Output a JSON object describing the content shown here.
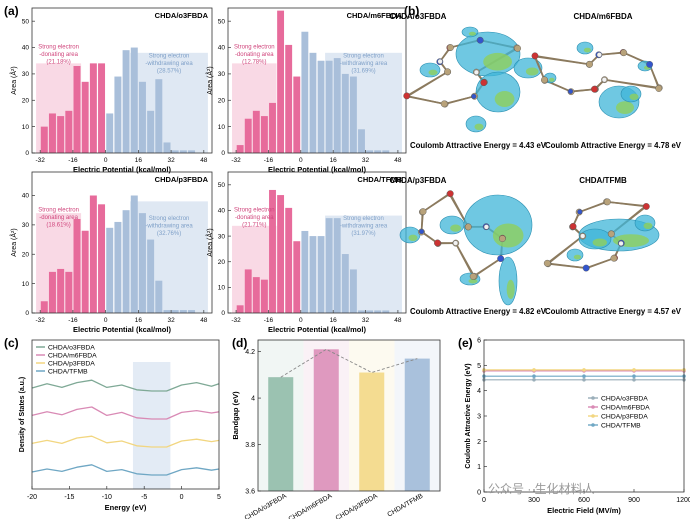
{
  "panel_labels": {
    "a": "(a)",
    "b": "(b)",
    "c": "(c)",
    "d": "(d)",
    "e": "(e)"
  },
  "colors": {
    "pink": "#e76b9b",
    "pink_light": "#f8d5e2",
    "blue": "#a9bfda",
    "blue_light": "#dce6f2",
    "green": "#7fa996",
    "yellow": "#f2d680",
    "rose": "#d98ab5",
    "teal": "#6fa7c4",
    "iso_cyan": "#3fb6d8",
    "iso_green": "#8fd05c"
  },
  "histograms": {
    "xlabel": "Electric Potential (kcal/mol)",
    "ylabel": "Area (Å²)",
    "xticks": [
      -32,
      -16,
      0,
      16,
      32,
      48
    ],
    "xlim": [
      -36,
      52
    ],
    "panels": [
      {
        "title": "CHDA/o3FBDA",
        "neg_label": [
          "Strong electron",
          "-donating area",
          "(21.18%)"
        ],
        "pos_label": [
          "Strong electron",
          "-withdrawing area",
          "(28.57%)"
        ],
        "yticks": [
          0,
          10,
          20,
          30,
          40,
          50
        ],
        "ylim": [
          0,
          55
        ]
      },
      {
        "title": "CHDA/m6FBDA",
        "neg_label": [
          "Strong electron",
          "-donating area",
          "(12.78%)"
        ],
        "pos_label": [
          "Strong electron",
          "-withdrawing area",
          "(31.69%)"
        ],
        "yticks": [
          0,
          10,
          20,
          30,
          40,
          50
        ],
        "ylim": [
          0,
          55
        ]
      },
      {
        "title": "CHDA/p3FBDA",
        "neg_label": [
          "Strong electron",
          "-donating area",
          "(18.61%)"
        ],
        "pos_label": [
          "Strong electron",
          "-withdrawing area",
          "(32.76%)"
        ],
        "yticks": [
          0,
          10,
          20,
          30,
          40
        ],
        "ylim": [
          0,
          48
        ]
      },
      {
        "title": "CHDA/TFMB",
        "neg_label": [
          "Strong electron",
          "-donating area",
          "(21.71%)"
        ],
        "pos_label": [
          "Strong electron",
          "-withdrawing area",
          "(31.97%)"
        ],
        "yticks": [
          0,
          10,
          20,
          30,
          40,
          50
        ],
        "ylim": [
          0,
          55
        ]
      }
    ]
  },
  "molecules": [
    {
      "title": "CHDA/o3FBDA",
      "energy_text": "Coulomb Attractive Energy = 4.43 eV"
    },
    {
      "title": "CHDA/m6FBDA",
      "energy_text": "Coulomb Attractive Energy = 4.78 eV"
    },
    {
      "title": "CHDA/p3FBDA",
      "energy_text": "Coulomb Attractive Energy = 4.82 eV"
    },
    {
      "title": "CHDA/TFMB",
      "energy_text": "Coulomb Attractive Energy = 4.57 eV"
    }
  ],
  "chart_data": [
    {
      "type": "bar",
      "panel": "a1",
      "title": "CHDA/o3FBDA",
      "x": [
        -30,
        -26,
        -22,
        -18,
        -14,
        -10,
        -6,
        -2,
        2,
        6,
        10,
        14,
        18,
        22,
        26,
        30,
        34,
        38,
        42,
        46
      ],
      "values": [
        10,
        15,
        14,
        16,
        33,
        27,
        34,
        34,
        15,
        29,
        39,
        40,
        27,
        16,
        28,
        4,
        1,
        1,
        1,
        0
      ],
      "xlabel": "Electric Potential (kcal/mol)",
      "ylabel": "Area (Å²)"
    },
    {
      "type": "bar",
      "panel": "a2",
      "title": "CHDA/m6FBDA",
      "x": [
        -30,
        -26,
        -22,
        -18,
        -14,
        -10,
        -6,
        -2,
        2,
        6,
        10,
        14,
        18,
        22,
        26,
        30,
        34,
        38,
        42,
        46
      ],
      "values": [
        3,
        13,
        16,
        14,
        19,
        54,
        41,
        29,
        46,
        38,
        35,
        35,
        36,
        30,
        29,
        9,
        1,
        1,
        1,
        0
      ],
      "xlabel": "Electric Potential (kcal/mol)",
      "ylabel": "Area (Å²)"
    },
    {
      "type": "bar",
      "panel": "a3",
      "title": "CHDA/p3FBDA",
      "x": [
        -30,
        -26,
        -22,
        -18,
        -14,
        -10,
        -6,
        -2,
        2,
        6,
        10,
        14,
        18,
        22,
        26,
        30,
        34,
        38,
        42,
        46
      ],
      "values": [
        4,
        14,
        15,
        14,
        32,
        28,
        40,
        37,
        29,
        31,
        35,
        40,
        34,
        25,
        11,
        1,
        1,
        1,
        1,
        0
      ],
      "xlabel": "Electric Potential (kcal/mol)",
      "ylabel": "Area (Å²)"
    },
    {
      "type": "bar",
      "panel": "a4",
      "title": "CHDA/TFMB",
      "x": [
        -30,
        -26,
        -22,
        -18,
        -14,
        -10,
        -6,
        -2,
        2,
        6,
        10,
        14,
        18,
        22,
        26,
        30,
        34,
        38,
        42,
        46
      ],
      "values": [
        3,
        17,
        14,
        13,
        48,
        46,
        41,
        28,
        32,
        30,
        30,
        37,
        37,
        23,
        17,
        1,
        1,
        1,
        1,
        0
      ],
      "xlabel": "Electric Potential (kcal/mol)",
      "ylabel": "Area (Å²)"
    },
    {
      "type": "line",
      "panel": "c",
      "xlabel": "Energy (eV)",
      "ylabel": "Density of States (a.u.)",
      "xlim": [
        -20,
        5
      ],
      "xticks": [
        -20,
        -15,
        -10,
        -5,
        0,
        5
      ],
      "series": [
        {
          "name": "CHDA/o3FBDA",
          "offset": 3,
          "color": "#7fa996",
          "x": [
            -20,
            -18,
            -16,
            -14,
            -12,
            -10,
            -8,
            -6,
            -4,
            -2,
            0,
            2,
            4,
            5
          ],
          "y": [
            0.25,
            0.6,
            0.3,
            0.7,
            0.9,
            0.3,
            0.5,
            0.1,
            0.0,
            0.0,
            0.5,
            0.7,
            0.4,
            0.6
          ]
        },
        {
          "name": "CHDA/m6FBDA",
          "offset": 2,
          "color": "#d98ab5",
          "x": [
            -20,
            -18,
            -16,
            -14,
            -12,
            -10,
            -8,
            -6,
            -4,
            -2,
            0,
            2,
            4,
            5
          ],
          "y": [
            0.3,
            0.6,
            0.35,
            0.8,
            1.0,
            0.3,
            0.55,
            0.1,
            0.0,
            0.0,
            0.55,
            0.7,
            0.5,
            0.6
          ]
        },
        {
          "name": "CHDA/p3FBDA",
          "offset": 1,
          "color": "#f2d680",
          "x": [
            -20,
            -18,
            -16,
            -14,
            -12,
            -10,
            -8,
            -6,
            -4,
            -2,
            0,
            2,
            4,
            5
          ],
          "y": [
            0.3,
            0.55,
            0.3,
            0.75,
            0.9,
            0.35,
            0.5,
            0.1,
            0.0,
            0.0,
            0.5,
            0.65,
            0.45,
            0.55
          ]
        },
        {
          "name": "CHDA/TFMB",
          "offset": 0,
          "color": "#6fa7c4",
          "x": [
            -20,
            -18,
            -16,
            -14,
            -12,
            -10,
            -8,
            -6,
            -4,
            -2,
            0,
            2,
            4,
            5
          ],
          "y": [
            0.25,
            0.5,
            0.3,
            0.65,
            0.85,
            0.3,
            0.45,
            0.1,
            0.0,
            0.0,
            0.45,
            0.6,
            0.4,
            0.5
          ]
        }
      ]
    },
    {
      "type": "bar",
      "panel": "d",
      "ylabel": "Bandgap (eV)",
      "ylim": [
        3.6,
        4.25
      ],
      "yticks": [
        3.6,
        3.8,
        4.0,
        4.2
      ],
      "categories": [
        "CHDA/o3FBDA",
        "CHDA/m6FBDA",
        "CHDA/p3FBDA",
        "CHDA/TFMB"
      ],
      "values": [
        4.09,
        4.21,
        4.11,
        4.17
      ],
      "colors": [
        "#8cb9a4",
        "#d98ab5",
        "#f2d680",
        "#9bb7d6"
      ]
    },
    {
      "type": "line",
      "panel": "e",
      "xlabel": "Electric Field (MV/m)",
      "ylabel": "Coulomb Attractive Energy (eV)",
      "xlim": [
        0,
        1200
      ],
      "xticks": [
        0,
        300,
        600,
        900,
        1200
      ],
      "ylim": [
        0,
        6
      ],
      "yticks": [
        0,
        1,
        2,
        3,
        4,
        5,
        6
      ],
      "series": [
        {
          "name": "CHDA/o3FBDA",
          "color": "#9aaeb9",
          "x": [
            0,
            300,
            600,
            900,
            1200
          ],
          "y": [
            4.43,
            4.43,
            4.43,
            4.43,
            4.43
          ]
        },
        {
          "name": "CHDA/m6FBDA",
          "color": "#d98ab5",
          "x": [
            0,
            300,
            600,
            900,
            1200
          ],
          "y": [
            4.78,
            4.78,
            4.78,
            4.78,
            4.78
          ]
        },
        {
          "name": "CHDA/p3FBDA",
          "color": "#f2d680",
          "x": [
            0,
            300,
            600,
            900,
            1200
          ],
          "y": [
            4.82,
            4.82,
            4.82,
            4.82,
            4.82
          ]
        },
        {
          "name": "CHDA/TFMB",
          "color": "#6fa7c4",
          "x": [
            0,
            300,
            600,
            900,
            1200
          ],
          "y": [
            4.57,
            4.57,
            4.57,
            4.57,
            4.57
          ]
        }
      ]
    }
  ],
  "watermark": "公众号 · 生化材料人"
}
